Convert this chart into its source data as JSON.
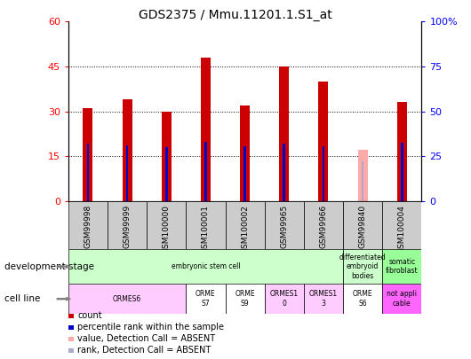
{
  "title": "GDS2375 / Mmu.11201.1.S1_at",
  "samples": [
    "GSM99998",
    "GSM99999",
    "GSM100000",
    "GSM100001",
    "GSM100002",
    "GSM99965",
    "GSM99966",
    "GSM99840",
    "GSM100004"
  ],
  "count_values": [
    31,
    34,
    30,
    48,
    32,
    45,
    40,
    null,
    33
  ],
  "count_absent": [
    null,
    null,
    null,
    null,
    null,
    null,
    null,
    17,
    null
  ],
  "rank_values": [
    32,
    31,
    30,
    33,
    30.5,
    32,
    30.5,
    null,
    32.5
  ],
  "rank_absent": [
    null,
    null,
    null,
    null,
    null,
    null,
    null,
    22,
    null
  ],
  "ylim_left": [
    0,
    60
  ],
  "ylim_right": [
    0,
    100
  ],
  "yticks_left": [
    0,
    15,
    30,
    45,
    60
  ],
  "yticks_right": [
    0,
    25,
    50,
    75,
    100
  ],
  "ytick_labels_left": [
    "0",
    "15",
    "30",
    "45",
    "60"
  ],
  "ytick_labels_right": [
    "0",
    "25",
    "50",
    "75",
    "100%"
  ],
  "development_stage_groups": [
    {
      "label": "embryonic stem cell",
      "start": 0,
      "end": 7,
      "color": "#ccffcc"
    },
    {
      "label": "differentiated\nembryoid\nbodies",
      "start": 7,
      "end": 8,
      "color": "#ccffcc"
    },
    {
      "label": "somatic\nfibroblast",
      "start": 8,
      "end": 9,
      "color": "#99ff99"
    }
  ],
  "cell_line_groups": [
    {
      "label": "ORMES6",
      "start": 0,
      "end": 3,
      "color": "#ffccff"
    },
    {
      "label": "ORME\nS7",
      "start": 3,
      "end": 4,
      "color": "#ffffff"
    },
    {
      "label": "ORME\nS9",
      "start": 4,
      "end": 5,
      "color": "#ffffff"
    },
    {
      "label": "ORMES1\n0",
      "start": 5,
      "end": 6,
      "color": "#ffccff"
    },
    {
      "label": "ORMES1\n3",
      "start": 6,
      "end": 7,
      "color": "#ffccff"
    },
    {
      "label": "ORME\nS6",
      "start": 7,
      "end": 8,
      "color": "#ffffff"
    },
    {
      "label": "not appli\ncable",
      "start": 8,
      "end": 9,
      "color": "#ff66ff"
    }
  ],
  "bar_color_count": "#cc0000",
  "bar_color_count_absent": "#ffaaaa",
  "bar_color_rank": "#0000cc",
  "bar_color_rank_absent": "#aaaacc",
  "legend_items": [
    {
      "color": "#cc0000",
      "label": "count"
    },
    {
      "color": "#0000cc",
      "label": "percentile rank within the sample"
    },
    {
      "color": "#ffaaaa",
      "label": "value, Detection Call = ABSENT"
    },
    {
      "color": "#aaaacc",
      "label": "rank, Detection Call = ABSENT"
    }
  ]
}
